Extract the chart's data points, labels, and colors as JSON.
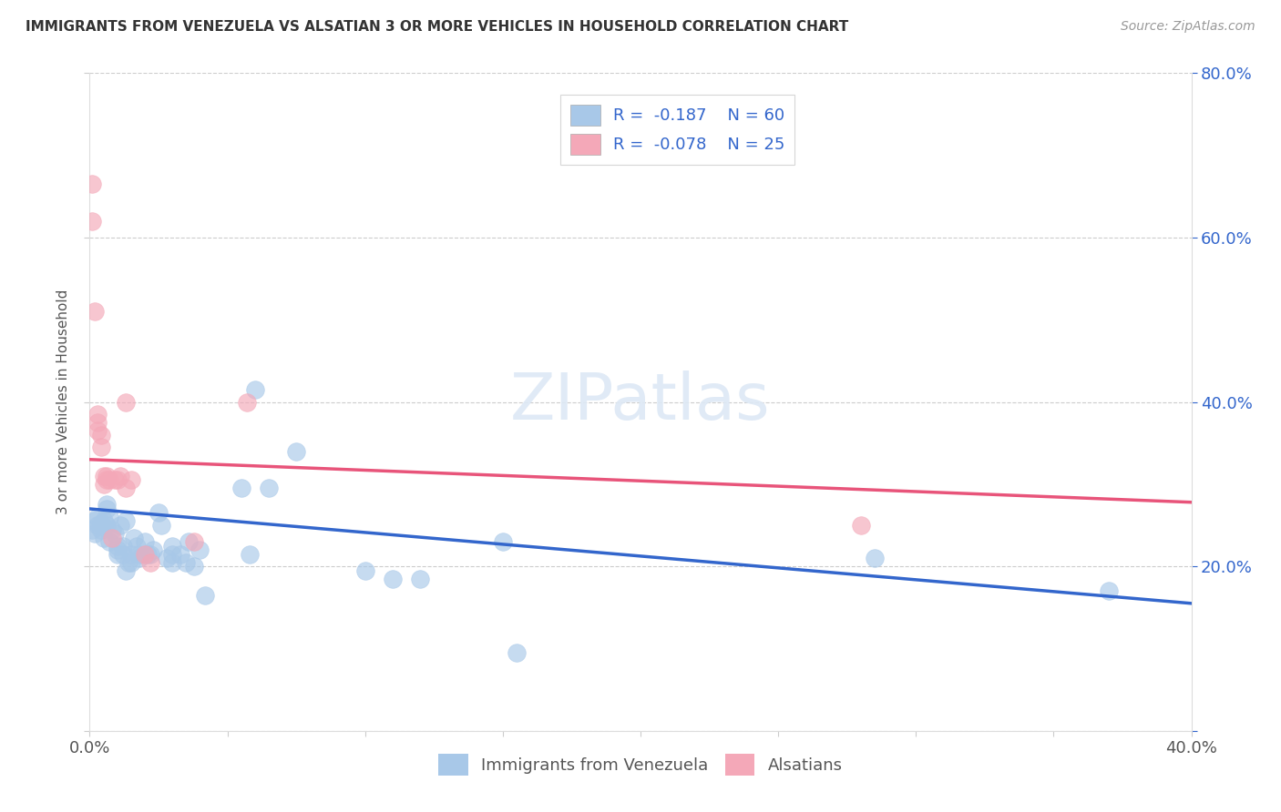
{
  "title": "IMMIGRANTS FROM VENEZUELA VS ALSATIAN 3 OR MORE VEHICLES IN HOUSEHOLD CORRELATION CHART",
  "source": "Source: ZipAtlas.com",
  "ylabel": "3 or more Vehicles in Household",
  "xlim": [
    0.0,
    0.4
  ],
  "ylim": [
    0.0,
    0.8
  ],
  "blue_color": "#a8c8e8",
  "pink_color": "#f4a8b8",
  "blue_line_color": "#3366cc",
  "pink_line_color": "#e8547a",
  "legend_text_color": "#3366cc",
  "legend_r1_label": "R = ",
  "legend_r1_val": "-0.187",
  "legend_n1_label": "N = ",
  "legend_n1_val": "60",
  "legend_r2_val": "-0.078",
  "legend_n2_val": "25",
  "blue_scatter": [
    [
      0.001,
      0.245
    ],
    [
      0.002,
      0.24
    ],
    [
      0.002,
      0.255
    ],
    [
      0.003,
      0.26
    ],
    [
      0.003,
      0.25
    ],
    [
      0.004,
      0.245
    ],
    [
      0.004,
      0.252
    ],
    [
      0.005,
      0.248
    ],
    [
      0.005,
      0.255
    ],
    [
      0.005,
      0.235
    ],
    [
      0.006,
      0.27
    ],
    [
      0.006,
      0.275
    ],
    [
      0.006,
      0.25
    ],
    [
      0.007,
      0.23
    ],
    [
      0.007,
      0.26
    ],
    [
      0.008,
      0.245
    ],
    [
      0.009,
      0.24
    ],
    [
      0.01,
      0.215
    ],
    [
      0.01,
      0.225
    ],
    [
      0.01,
      0.22
    ],
    [
      0.011,
      0.25
    ],
    [
      0.012,
      0.225
    ],
    [
      0.012,
      0.215
    ],
    [
      0.013,
      0.255
    ],
    [
      0.013,
      0.195
    ],
    [
      0.014,
      0.205
    ],
    [
      0.015,
      0.215
    ],
    [
      0.015,
      0.205
    ],
    [
      0.016,
      0.235
    ],
    [
      0.017,
      0.225
    ],
    [
      0.018,
      0.215
    ],
    [
      0.018,
      0.21
    ],
    [
      0.02,
      0.23
    ],
    [
      0.021,
      0.215
    ],
    [
      0.022,
      0.215
    ],
    [
      0.023,
      0.22
    ],
    [
      0.025,
      0.265
    ],
    [
      0.026,
      0.25
    ],
    [
      0.028,
      0.21
    ],
    [
      0.03,
      0.215
    ],
    [
      0.03,
      0.225
    ],
    [
      0.03,
      0.205
    ],
    [
      0.033,
      0.215
    ],
    [
      0.035,
      0.205
    ],
    [
      0.036,
      0.23
    ],
    [
      0.038,
      0.2
    ],
    [
      0.04,
      0.22
    ],
    [
      0.042,
      0.165
    ],
    [
      0.055,
      0.295
    ],
    [
      0.058,
      0.215
    ],
    [
      0.06,
      0.415
    ],
    [
      0.065,
      0.295
    ],
    [
      0.075,
      0.34
    ],
    [
      0.1,
      0.195
    ],
    [
      0.11,
      0.185
    ],
    [
      0.12,
      0.185
    ],
    [
      0.15,
      0.23
    ],
    [
      0.155,
      0.095
    ],
    [
      0.285,
      0.21
    ],
    [
      0.37,
      0.17
    ]
  ],
  "pink_scatter": [
    [
      0.001,
      0.62
    ],
    [
      0.001,
      0.665
    ],
    [
      0.002,
      0.51
    ],
    [
      0.003,
      0.365
    ],
    [
      0.003,
      0.375
    ],
    [
      0.003,
      0.385
    ],
    [
      0.004,
      0.36
    ],
    [
      0.004,
      0.345
    ],
    [
      0.005,
      0.3
    ],
    [
      0.005,
      0.31
    ],
    [
      0.006,
      0.31
    ],
    [
      0.006,
      0.305
    ],
    [
      0.007,
      0.305
    ],
    [
      0.008,
      0.235
    ],
    [
      0.009,
      0.305
    ],
    [
      0.01,
      0.305
    ],
    [
      0.011,
      0.31
    ],
    [
      0.013,
      0.4
    ],
    [
      0.013,
      0.295
    ],
    [
      0.015,
      0.305
    ],
    [
      0.02,
      0.215
    ],
    [
      0.022,
      0.205
    ],
    [
      0.038,
      0.23
    ],
    [
      0.057,
      0.4
    ],
    [
      0.28,
      0.25
    ]
  ],
  "blue_trendline": [
    [
      0.0,
      0.27
    ],
    [
      0.4,
      0.155
    ]
  ],
  "pink_trendline": [
    [
      0.0,
      0.33
    ],
    [
      0.4,
      0.278
    ]
  ]
}
